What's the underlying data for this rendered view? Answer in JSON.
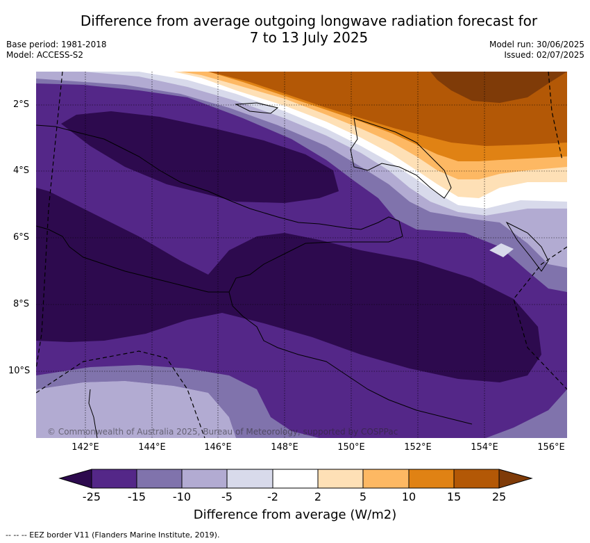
{
  "title_line1": "Difference from average outgoing longwave radiation forecast for",
  "title_line2": "7 to 13 July 2025",
  "base_period": "Base period: 1981-2018",
  "model": "Model: ACCESS-S2",
  "model_run": "Model run: 30/06/2025",
  "issued": "Issued: 02/07/2025",
  "lat_ticks": [
    "2°S",
    "4°S",
    "6°S",
    "8°S",
    "10°S"
  ],
  "lon_ticks": [
    "142°E",
    "144°E",
    "146°E",
    "148°E",
    "150°E",
    "152°E",
    "154°E",
    "156°E"
  ],
  "copyright": "© Commonwealth of Australia 2025, Bureau of Meteorology, supported by COSPPac",
  "colorbar": {
    "title": "Difference from average (W/m2)",
    "labels": [
      "-25",
      "-15",
      "-10",
      "-5",
      "-2",
      "2",
      "5",
      "10",
      "15",
      "25"
    ],
    "colors": {
      "below_minus25": "#2d0a4e",
      "m25_m15": "#542788",
      "m15_m10": "#8073ac",
      "m10_m5": "#b2abd2",
      "m5_m2": "#d8daeb",
      "m2_2": "#ffffff",
      "p2_5": "#fee0b6",
      "p5_10": "#fdb863",
      "p10_15": "#e08214",
      "p15_25": "#b35806",
      "above_25": "#7f3b08"
    }
  },
  "footnote": "--  --  -- EEZ border V11 (Flanders Marine Institute, 2019)."
}
